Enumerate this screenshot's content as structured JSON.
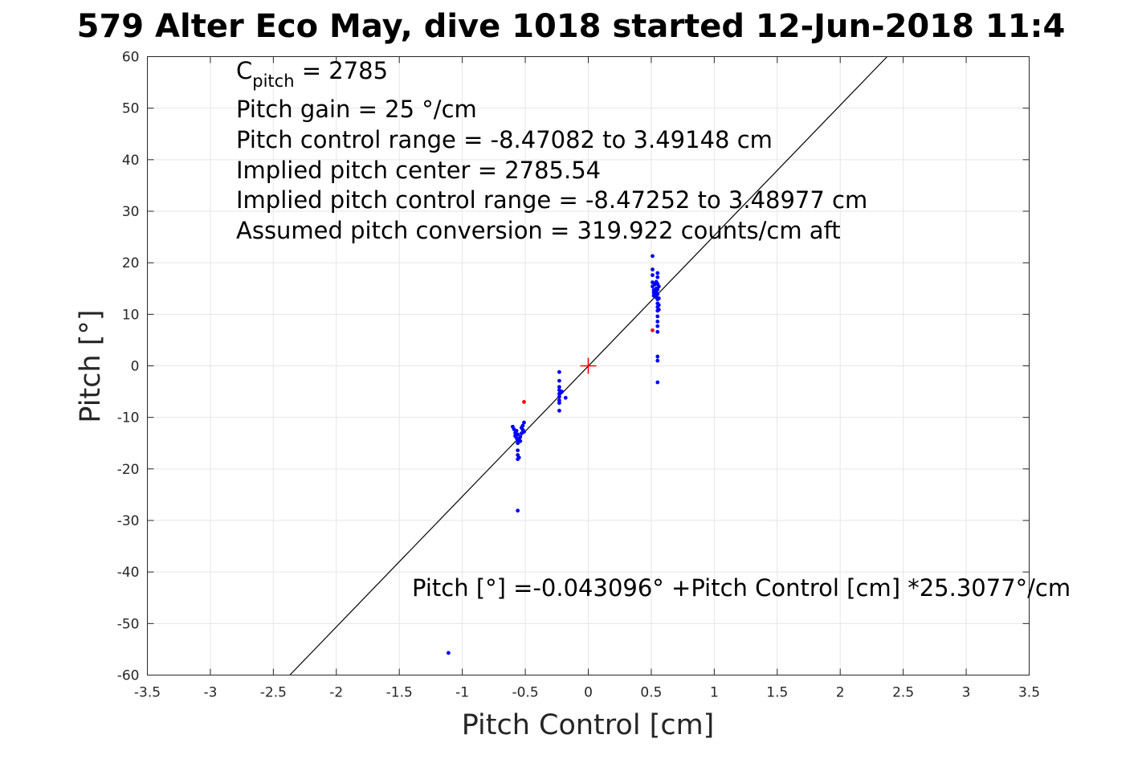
{
  "chart_data": {
    "type": "scatter",
    "title": "579 Alter Eco May, dive 1018 started 12-Jun-2018 11:4",
    "xlabel": "Pitch Control [cm]",
    "ylabel": "Pitch [°]",
    "xlim": [
      -3.5,
      3.5
    ],
    "ylim": [
      -60,
      60
    ],
    "xticks": [
      -3.5,
      -3,
      -2.5,
      -2,
      -1.5,
      -1,
      -0.5,
      0,
      0.5,
      1,
      1.5,
      2,
      2.5,
      3,
      3.5
    ],
    "xtick_labels": [
      "-3.5",
      "-3",
      "-2.5",
      "-2",
      "-1.5",
      "-1",
      "-0.5",
      "0",
      "0.5",
      "1",
      "1.5",
      "2",
      "2.5",
      "3",
      "3.5"
    ],
    "yticks": [
      -60,
      -50,
      -40,
      -30,
      -20,
      -10,
      0,
      10,
      20,
      30,
      40,
      50,
      60
    ],
    "ytick_labels": [
      "-60",
      "-50",
      "-40",
      "-30",
      "-20",
      "-10",
      "0",
      "10",
      "20",
      "30",
      "40",
      "50",
      "60"
    ],
    "grid": true,
    "annotations": {
      "c_pitch_base": "C",
      "c_pitch_sub": "pitch",
      "c_pitch_rest": " = 2785",
      "pitch_gain": "Pitch gain = 25 °/cm",
      "pitch_control_range": "Pitch control range = -8.47082 to 3.49148 cm",
      "implied_center": "Implied pitch center = 2785.54",
      "implied_range": "Implied pitch control range = -8.47252 to 3.48977 cm",
      "assumed_conversion": "Assumed pitch conversion = 319.922 counts/cm aft",
      "fit_equation": "Pitch [°] =-0.043096° +Pitch Control [cm] *25.3077°/cm"
    },
    "fit_line": {
      "intercept": -0.043096,
      "slope": 25.3077,
      "color": "#000000"
    },
    "center_marker": {
      "x": 0,
      "y": 0,
      "color": "#ff0000"
    },
    "series": [
      {
        "color": "#0000ff",
        "points": [
          [
            -1.11,
            -55.7
          ],
          [
            -0.6,
            -11.8
          ],
          [
            -0.59,
            -12.3
          ],
          [
            -0.58,
            -13.0
          ],
          [
            -0.58,
            -13.6
          ],
          [
            -0.57,
            -14.0
          ],
          [
            -0.57,
            -12.6
          ],
          [
            -0.56,
            -13.3
          ],
          [
            -0.56,
            -14.4
          ],
          [
            -0.56,
            -15.0
          ],
          [
            -0.55,
            -14.2
          ],
          [
            -0.55,
            -14.7
          ],
          [
            -0.56,
            -16.4
          ],
          [
            -0.56,
            -17.3
          ],
          [
            -0.56,
            -18.1
          ],
          [
            -0.55,
            -17.8
          ],
          [
            -0.56,
            -28.1
          ],
          [
            -0.54,
            -13.8
          ],
          [
            -0.54,
            -14.6
          ],
          [
            -0.53,
            -13.1
          ],
          [
            -0.52,
            -12.4
          ],
          [
            -0.52,
            -11.6
          ],
          [
            -0.51,
            -11.0
          ],
          [
            -0.51,
            -12.8
          ],
          [
            -0.53,
            -12.0
          ],
          [
            -0.23,
            -1.2
          ],
          [
            -0.23,
            -2.9
          ],
          [
            -0.23,
            -4.1
          ],
          [
            -0.23,
            -4.7
          ],
          [
            -0.23,
            -5.4
          ],
          [
            -0.23,
            -6.0
          ],
          [
            -0.23,
            -6.7
          ],
          [
            -0.23,
            -7.2
          ],
          [
            -0.23,
            -8.7
          ],
          [
            -0.21,
            -5.0
          ],
          [
            -0.18,
            -6.2
          ],
          [
            0.51,
            21.3
          ],
          [
            0.51,
            18.7
          ],
          [
            0.51,
            17.6
          ],
          [
            0.51,
            16.2
          ],
          [
            0.51,
            15.4
          ],
          [
            0.52,
            14.7
          ],
          [
            0.52,
            14.2
          ],
          [
            0.52,
            13.6
          ],
          [
            0.53,
            15.8
          ],
          [
            0.53,
            14.0
          ],
          [
            0.54,
            16.3
          ],
          [
            0.54,
            15.0
          ],
          [
            0.54,
            14.3
          ],
          [
            0.54,
            13.3
          ],
          [
            0.55,
            18.0
          ],
          [
            0.55,
            17.2
          ],
          [
            0.55,
            15.9
          ],
          [
            0.55,
            14.8
          ],
          [
            0.55,
            13.9
          ],
          [
            0.55,
            12.9
          ],
          [
            0.55,
            12.1
          ],
          [
            0.55,
            11.4
          ],
          [
            0.55,
            10.7
          ],
          [
            0.55,
            9.6
          ],
          [
            0.55,
            8.6
          ],
          [
            0.55,
            7.7
          ],
          [
            0.55,
            6.6
          ],
          [
            0.56,
            15.4
          ],
          [
            0.56,
            13.1
          ],
          [
            0.56,
            11.8
          ],
          [
            0.56,
            10.9
          ],
          [
            0.55,
            1.8
          ],
          [
            0.55,
            1.0
          ],
          [
            0.55,
            -3.2
          ]
        ]
      },
      {
        "color": "#ff0000",
        "points": [
          [
            -0.51,
            -7.0
          ],
          [
            0.51,
            6.9
          ]
        ]
      }
    ]
  }
}
